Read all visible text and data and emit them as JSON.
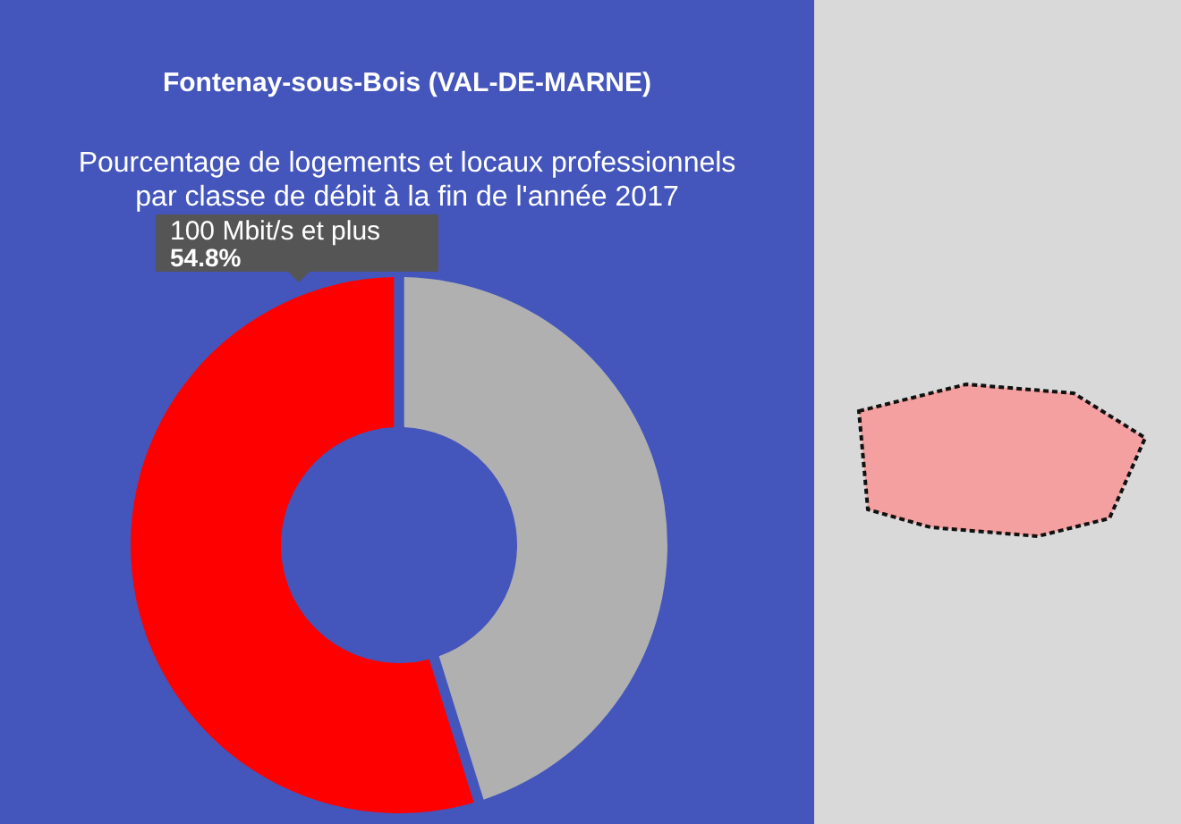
{
  "chart_data": {
    "type": "donut",
    "title": "Fontenay-sous-Bois (VAL-DE-MARNE)",
    "subtitle": "Pourcentage de logements et locaux professionnels par classe de débit à la fin de l'année 2017",
    "categories": [
      "100 Mbit/s et plus",
      null
    ],
    "values": [
      54.8,
      45.2
    ],
    "colors": [
      "#ff0000",
      "#b0b0b0"
    ],
    "value_labels": [
      "54.8%",
      null
    ]
  }
}
